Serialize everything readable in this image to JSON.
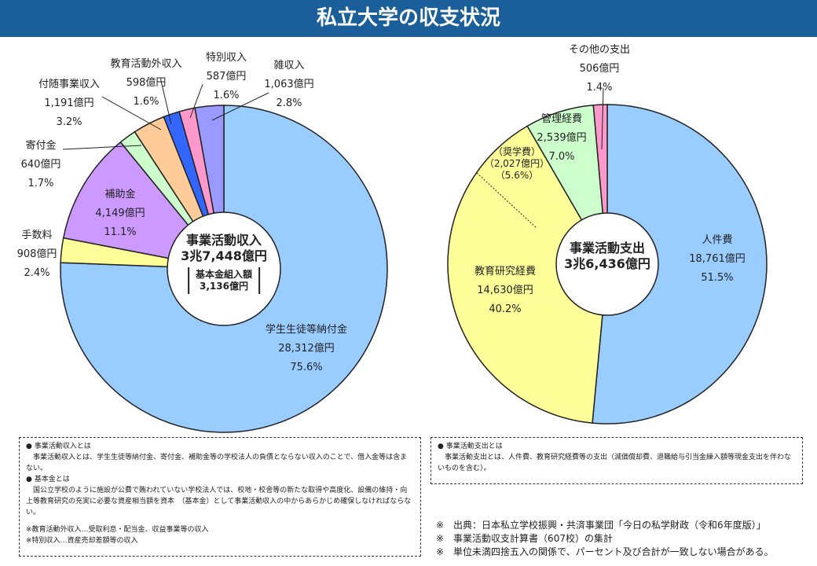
{
  "title": "私立大学の収支状況",
  "chart_data": [
    {
      "type": "pie",
      "name": "事業活動収入",
      "center_label": "事業活動収入",
      "center_total": "3兆7,448億円",
      "kihon_label": "基本金組入額",
      "kihon_value": "3,136億円",
      "unit": "億円",
      "slices": [
        {
          "label": "学生生徒等納付金",
          "value": 28312,
          "value_text": "28,312億円",
          "percent": 75.6,
          "percent_text": "75.6%",
          "color": "#99ccff"
        },
        {
          "label": "手数料",
          "value": 908,
          "value_text": "908億円",
          "percent": 2.4,
          "percent_text": "2.4%",
          "color": "#ffff99"
        },
        {
          "label": "補助金",
          "value": 4149,
          "value_text": "4,149億円",
          "percent": 11.1,
          "percent_text": "11.1%",
          "color": "#cc99ff"
        },
        {
          "label": "寄付金",
          "value": 640,
          "value_text": "640億円",
          "percent": 1.7,
          "percent_text": "1.7%",
          "color": "#ccffcc"
        },
        {
          "label": "付随事業収入",
          "value": 1191,
          "value_text": "1,191億円",
          "percent": 3.2,
          "percent_text": "3.2%",
          "color": "#ffcc99"
        },
        {
          "label": "教育活動外収入",
          "value": 598,
          "value_text": "598億円",
          "percent": 1.6,
          "percent_text": "1.6%",
          "color": "#3366ff"
        },
        {
          "label": "特別収入",
          "value": 587,
          "value_text": "587億円",
          "percent": 1.6,
          "percent_text": "1.6%",
          "color": "#ff99cc"
        },
        {
          "label": "雑収入",
          "value": 1063,
          "value_text": "1,063億円",
          "percent": 2.8,
          "percent_text": "2.8%",
          "color": "#9999ff"
        }
      ]
    },
    {
      "type": "pie",
      "name": "事業活動支出",
      "center_label": "事業活動支出",
      "center_total": "3兆6,436億円",
      "unit": "億円",
      "slices": [
        {
          "label": "人件費",
          "value": 18761,
          "value_text": "18,761億円",
          "percent": 51.5,
          "percent_text": "51.5%",
          "color": "#99ccff"
        },
        {
          "label": "教育研究経費",
          "value": 14630,
          "value_text": "14,630億円",
          "percent": 40.2,
          "percent_text": "40.2%",
          "color": "#ffff99"
        },
        {
          "label": "管理経費",
          "value": 2539,
          "value_text": "2,539億円",
          "percent": 7.0,
          "percent_text": "7.0%",
          "color": "#ccffcc"
        },
        {
          "label": "その他の支出",
          "value": 506,
          "value_text": "506億円",
          "percent": 1.4,
          "percent_text": "1.4%",
          "color": "#ff99cc"
        }
      ],
      "sub_item": {
        "label": "（奨学費）",
        "value_text": "（2,027億円）",
        "percent_text": "（5.6%）"
      }
    }
  ],
  "notes_left": {
    "h1": "● 事業活動収入とは",
    "p1": "事業活動収入とは、学生生徒等納付金、寄付金、補助金等の学校法人の負債とならない収入のことで、借入金等は含まない。",
    "h2": "● 基本金とは",
    "p2": "国公立学校のように施設が公費で賄われていない学校法人では、校地・校舎等の新たな取得や高度化、設備の維持・向上等教育研究の充実に必要な資産相当額を資本　（基本金）として事業活動収入の中からあらかじめ確保しなければならない。",
    "n1": "※教育活動外収入…受取利息・配当金、収益事業等の収入",
    "n2": "※特別収入…資産売却差額等の収入"
  },
  "notes_right": {
    "h1": "● 事業活動支出とは",
    "p1": "事業活動支出とは、人件費、教育研究経費等の支出（減価償却費、退職給与引当金繰入額等現金支出を伴わないものを含む）。"
  },
  "sources": [
    "※　出典：日本私立学校振興・共済事業団「今日の私学財政（令和6年度版）」",
    "※　事業活動収支計算書（607校）の集計",
    "※　単位未満四捨五入の関係で、パーセント及び合計が一致しない場合がある。"
  ]
}
